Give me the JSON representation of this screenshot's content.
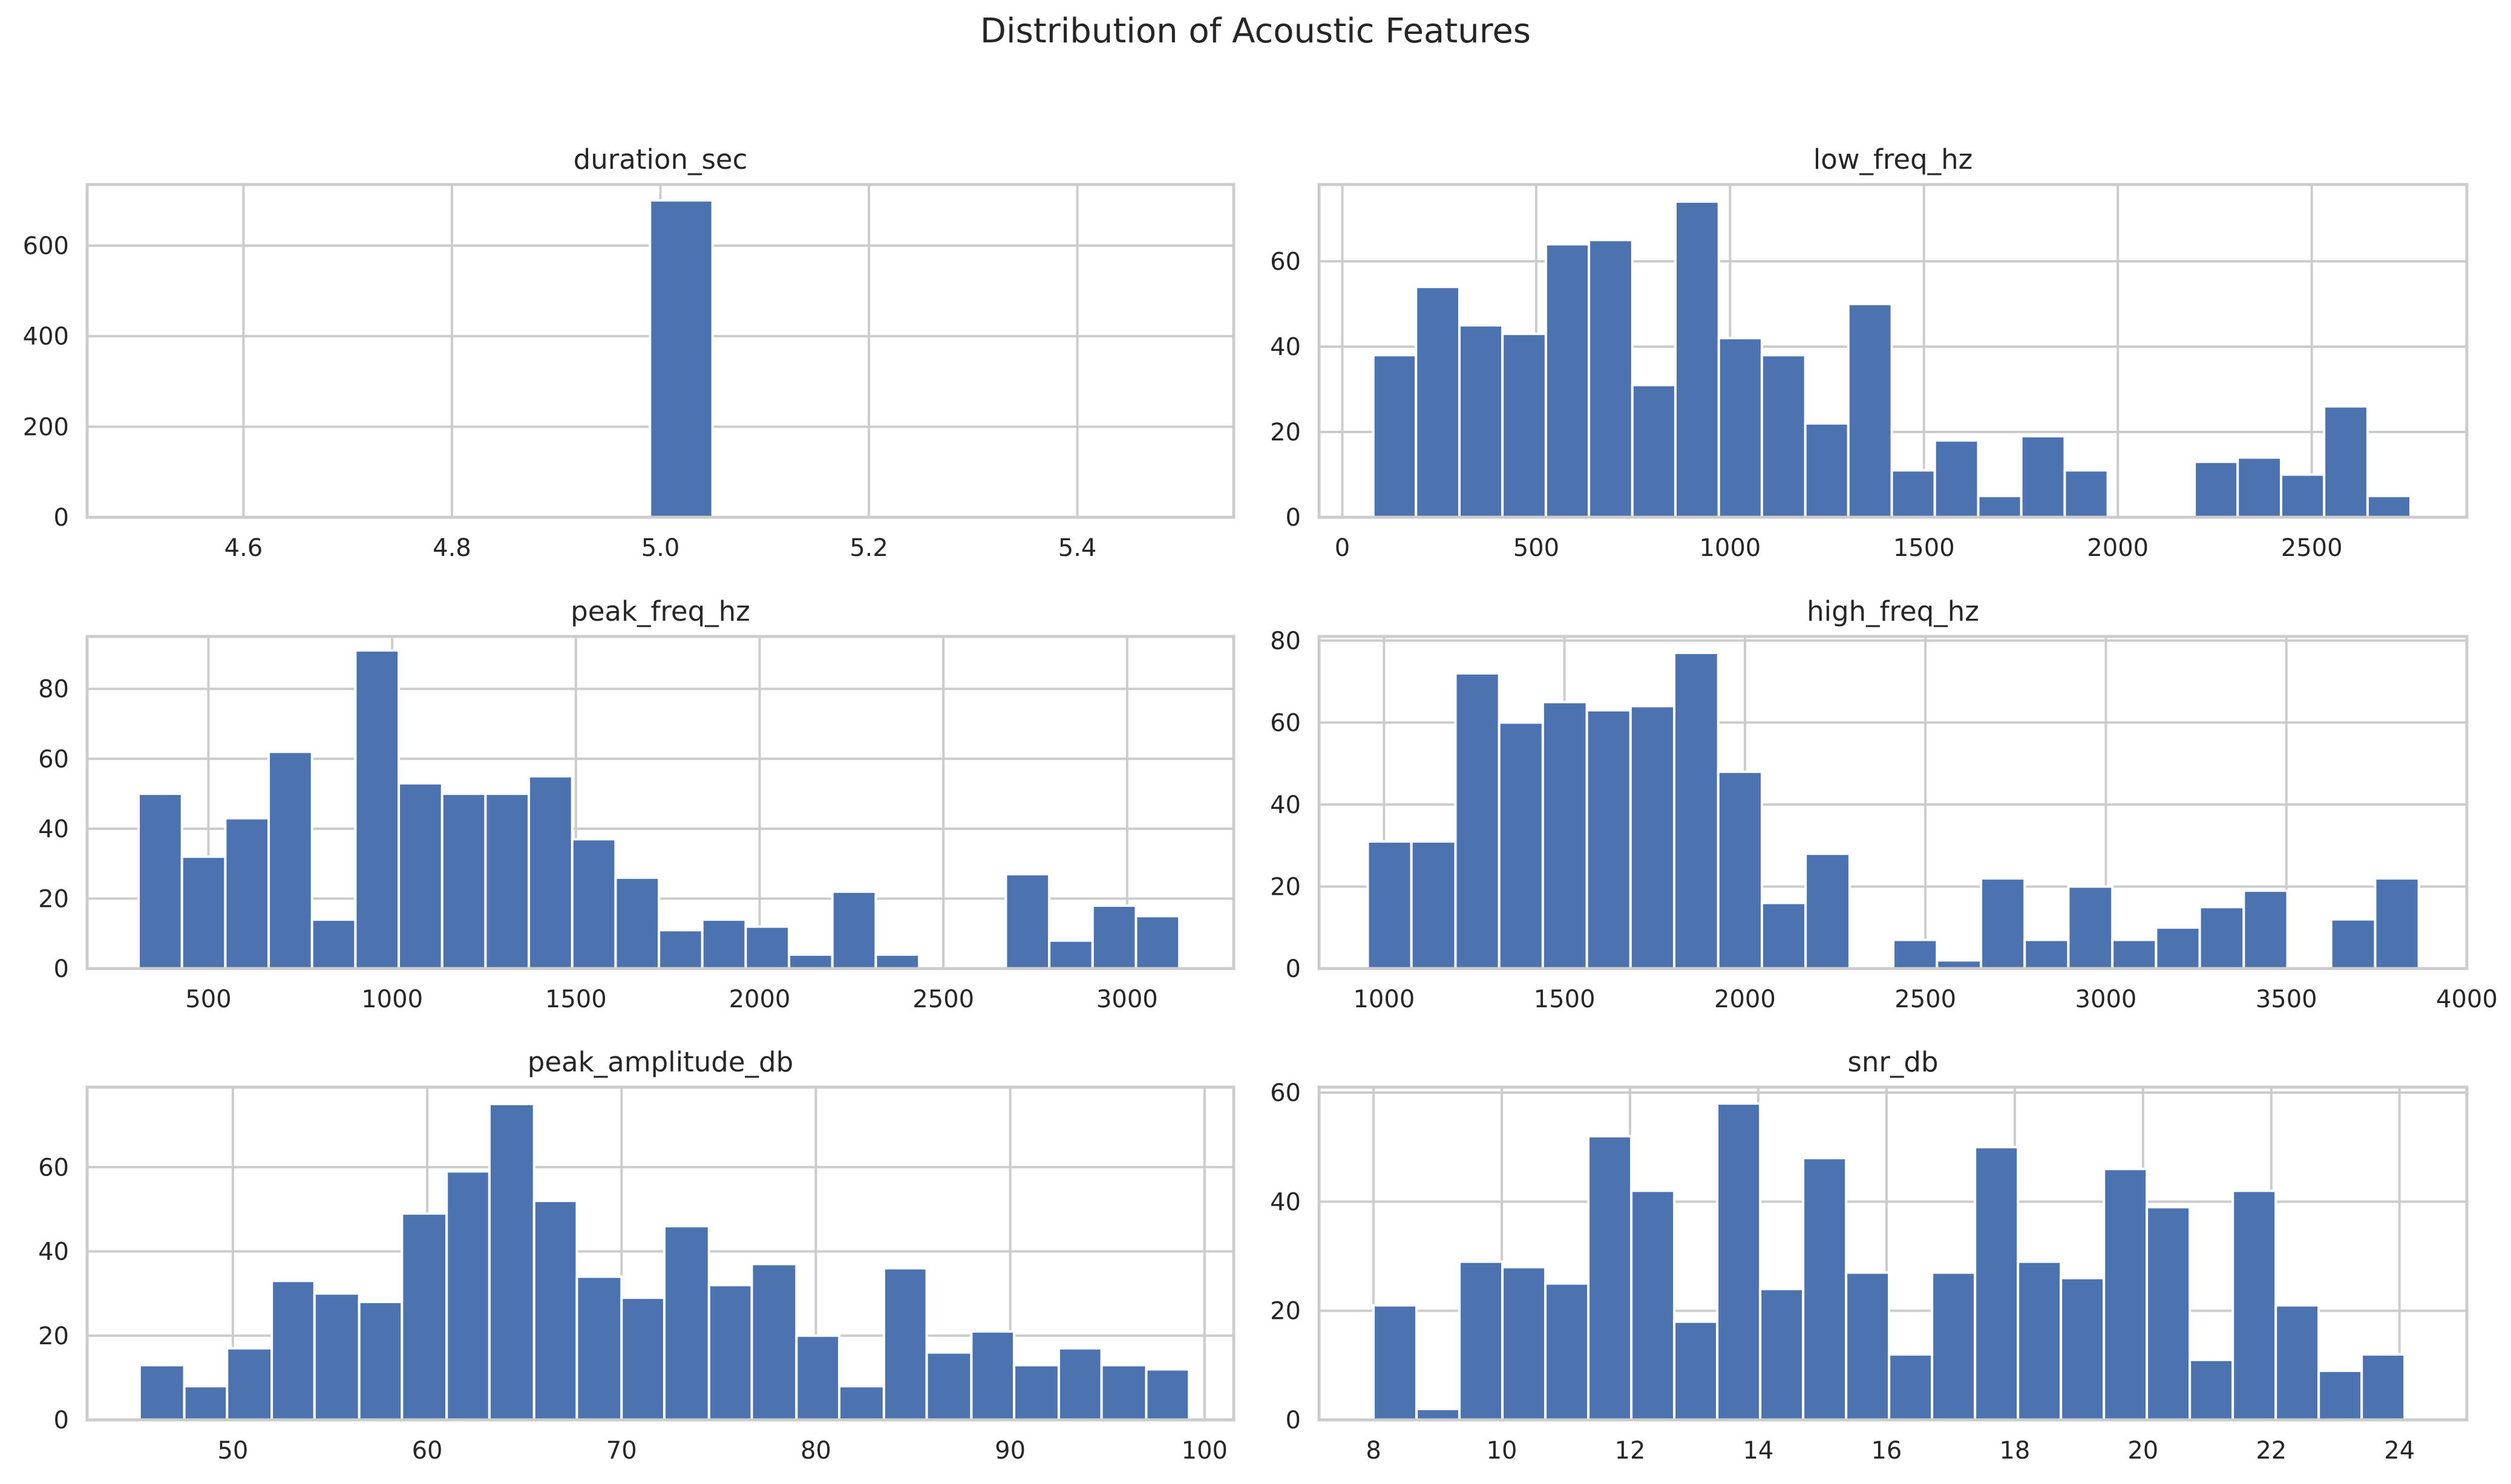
{
  "figure": {
    "title": "Distribution of Acoustic Features",
    "colors": {
      "bar": "#4c72b0",
      "grid": "#cccccc",
      "background": "#ffffff",
      "text": "#262626"
    }
  },
  "chart_data": [
    {
      "type": "bar",
      "title": "duration_sec",
      "bins": [
        [
          4.99,
          5.05
        ]
      ],
      "values": [
        700
      ],
      "xlim": [
        4.45,
        5.55
      ],
      "ylim": [
        0,
        735
      ],
      "xticks": [
        4.6,
        4.8,
        5.0,
        5.2,
        5.4
      ],
      "xtick_labels": [
        "4.6",
        "4.8",
        "5.0",
        "5.2",
        "5.4"
      ],
      "yticks": [
        0,
        200,
        400,
        600
      ],
      "ytick_labels": [
        "0",
        "200",
        "400",
        "600"
      ],
      "grid": true
    },
    {
      "type": "bar",
      "title": "low_freq_hz",
      "bins": [
        [
          80,
          190
        ],
        [
          190,
          302
        ],
        [
          302,
          413
        ],
        [
          413,
          525
        ],
        [
          525,
          636
        ],
        [
          636,
          748
        ],
        [
          748,
          859
        ],
        [
          859,
          971
        ],
        [
          971,
          1082
        ],
        [
          1082,
          1194
        ],
        [
          1194,
          1305
        ],
        [
          1305,
          1417
        ],
        [
          1417,
          1528
        ],
        [
          1528,
          1640
        ],
        [
          1640,
          1751
        ],
        [
          1751,
          1863
        ],
        [
          1863,
          1974
        ],
        [
          2198,
          2309
        ],
        [
          2309,
          2421
        ],
        [
          2421,
          2532
        ],
        [
          2532,
          2644
        ],
        [
          2644,
          2755
        ]
      ],
      "values": [
        38,
        54,
        45,
        43,
        64,
        65,
        31,
        74,
        42,
        38,
        22,
        50,
        11,
        18,
        5,
        19,
        11,
        13,
        14,
        10,
        26,
        5
      ],
      "xlim": [
        -60,
        2900
      ],
      "ylim": [
        0,
        78
      ],
      "xticks": [
        0,
        500,
        1000,
        1500,
        2000,
        2500
      ],
      "xtick_labels": [
        "0",
        "500",
        "1000",
        "1500",
        "2000",
        "2500"
      ],
      "yticks": [
        0,
        20,
        40,
        60
      ],
      "ytick_labels": [
        "0",
        "20",
        "40",
        "60"
      ],
      "grid": true
    },
    {
      "type": "bar",
      "title": "peak_freq_hz",
      "bins": [
        [
          310,
          428
        ],
        [
          428,
          546
        ],
        [
          546,
          664
        ],
        [
          664,
          782
        ],
        [
          782,
          900
        ],
        [
          900,
          1018
        ],
        [
          1018,
          1136
        ],
        [
          1136,
          1254
        ],
        [
          1254,
          1372
        ],
        [
          1372,
          1490
        ],
        [
          1490,
          1608
        ],
        [
          1608,
          1726
        ],
        [
          1726,
          1844
        ],
        [
          1844,
          1962
        ],
        [
          1962,
          2080
        ],
        [
          2080,
          2198
        ],
        [
          2198,
          2316
        ],
        [
          2316,
          2434
        ],
        [
          2670,
          2788
        ],
        [
          2788,
          2906
        ],
        [
          2906,
          3024
        ],
        [
          3024,
          3142
        ]
      ],
      "values": [
        50,
        32,
        43,
        62,
        14,
        91,
        53,
        50,
        50,
        55,
        37,
        26,
        11,
        14,
        12,
        4,
        22,
        4,
        27,
        8,
        18,
        15
      ],
      "xlim": [
        170,
        3290
      ],
      "ylim": [
        0,
        95
      ],
      "xticks": [
        500,
        1000,
        1500,
        2000,
        2500,
        3000
      ],
      "xtick_labels": [
        "500",
        "1000",
        "1500",
        "2000",
        "2500",
        "3000"
      ],
      "yticks": [
        0,
        20,
        40,
        60,
        80
      ],
      "ytick_labels": [
        "0",
        "20",
        "40",
        "60",
        "80"
      ],
      "grid": true
    },
    {
      "type": "bar",
      "title": "high_freq_hz",
      "bins": [
        [
          955,
          1076
        ],
        [
          1076,
          1198
        ],
        [
          1198,
          1319
        ],
        [
          1319,
          1440
        ],
        [
          1440,
          1562
        ],
        [
          1562,
          1683
        ],
        [
          1683,
          1804
        ],
        [
          1804,
          1926
        ],
        [
          1926,
          2047
        ],
        [
          2047,
          2168
        ],
        [
          2168,
          2290
        ],
        [
          2411,
          2532
        ],
        [
          2532,
          2654
        ],
        [
          2654,
          2775
        ],
        [
          2775,
          2896
        ],
        [
          2896,
          3018
        ],
        [
          3018,
          3139
        ],
        [
          3139,
          3260
        ],
        [
          3260,
          3382
        ],
        [
          3382,
          3503
        ],
        [
          3624,
          3746
        ],
        [
          3746,
          3867
        ]
      ],
      "values": [
        31,
        31,
        72,
        60,
        65,
        63,
        64,
        77,
        48,
        16,
        28,
        7,
        2,
        22,
        7,
        20,
        7,
        10,
        15,
        19,
        12,
        22
      ],
      "xlim": [
        820,
        4000
      ],
      "ylim": [
        0,
        81
      ],
      "xticks": [
        1000,
        1500,
        2000,
        2500,
        3000,
        3500,
        4000
      ],
      "xtick_labels": [
        "1000",
        "1500",
        "2000",
        "2500",
        "3000",
        "3500",
        "4000"
      ],
      "yticks": [
        0,
        20,
        40,
        60,
        80
      ],
      "ytick_labels": [
        "0",
        "20",
        "40",
        "60",
        "80"
      ],
      "grid": true
    },
    {
      "type": "bar",
      "title": "peak_amplitude_db",
      "bins": [
        [
          45.2,
          47.5
        ],
        [
          47.5,
          49.7
        ],
        [
          49.7,
          52.0
        ],
        [
          52.0,
          54.2
        ],
        [
          54.2,
          56.5
        ],
        [
          56.5,
          58.7
        ],
        [
          58.7,
          61.0
        ],
        [
          61.0,
          63.2
        ],
        [
          63.2,
          65.5
        ],
        [
          65.5,
          67.7
        ],
        [
          67.7,
          70.0
        ],
        [
          70.0,
          72.2
        ],
        [
          72.2,
          74.5
        ],
        [
          74.5,
          76.7
        ],
        [
          76.7,
          79.0
        ],
        [
          79.0,
          81.2
        ],
        [
          81.2,
          83.5
        ],
        [
          83.5,
          85.7
        ],
        [
          85.7,
          88.0
        ],
        [
          88.0,
          90.2
        ],
        [
          90.2,
          92.5
        ],
        [
          92.5,
          94.7
        ],
        [
          94.7,
          97.0
        ],
        [
          97.0,
          99.2
        ]
      ],
      "values": [
        13,
        8,
        17,
        33,
        30,
        28,
        49,
        59,
        75,
        52,
        34,
        29,
        46,
        32,
        37,
        20,
        8,
        36,
        16,
        21,
        13,
        17,
        13,
        12
      ],
      "xlim": [
        42.5,
        101.5
      ],
      "ylim": [
        0,
        79
      ],
      "xticks": [
        50,
        60,
        70,
        80,
        90,
        100
      ],
      "xtick_labels": [
        "50",
        "60",
        "70",
        "80",
        "90",
        "100"
      ],
      "yticks": [
        0,
        20,
        40,
        60
      ],
      "ytick_labels": [
        "0",
        "20",
        "40",
        "60"
      ],
      "grid": true
    },
    {
      "type": "bar",
      "title": "snr_db",
      "bins": [
        [
          8.0,
          8.67
        ],
        [
          8.67,
          9.34
        ],
        [
          9.34,
          10.01
        ],
        [
          10.01,
          10.68
        ],
        [
          10.68,
          11.35
        ],
        [
          11.35,
          12.02
        ],
        [
          12.02,
          12.69
        ],
        [
          12.69,
          13.36
        ],
        [
          13.36,
          14.03
        ],
        [
          14.03,
          14.7
        ],
        [
          14.7,
          15.37
        ],
        [
          15.37,
          16.04
        ],
        [
          16.04,
          16.71
        ],
        [
          16.71,
          17.38
        ],
        [
          17.38,
          18.05
        ],
        [
          18.05,
          18.72
        ],
        [
          18.72,
          19.39
        ],
        [
          19.39,
          20.06
        ],
        [
          20.06,
          20.73
        ],
        [
          20.73,
          21.4
        ],
        [
          21.4,
          22.07
        ],
        [
          22.07,
          22.74
        ],
        [
          22.74,
          23.41
        ],
        [
          23.41,
          24.08
        ]
      ],
      "values": [
        21,
        2,
        29,
        28,
        25,
        52,
        42,
        18,
        58,
        24,
        48,
        27,
        12,
        27,
        50,
        29,
        26,
        46,
        39,
        11,
        42,
        21,
        9,
        12
      ],
      "xlim": [
        7.15,
        25.05
      ],
      "ylim": [
        0,
        61
      ],
      "xticks": [
        8,
        10,
        12,
        14,
        16,
        18,
        20,
        22,
        24
      ],
      "xtick_labels": [
        "8",
        "10",
        "12",
        "14",
        "16",
        "18",
        "20",
        "22",
        "24"
      ],
      "yticks": [
        0,
        20,
        40,
        60
      ],
      "ytick_labels": [
        "0",
        "20",
        "40",
        "60"
      ],
      "grid": true
    }
  ]
}
